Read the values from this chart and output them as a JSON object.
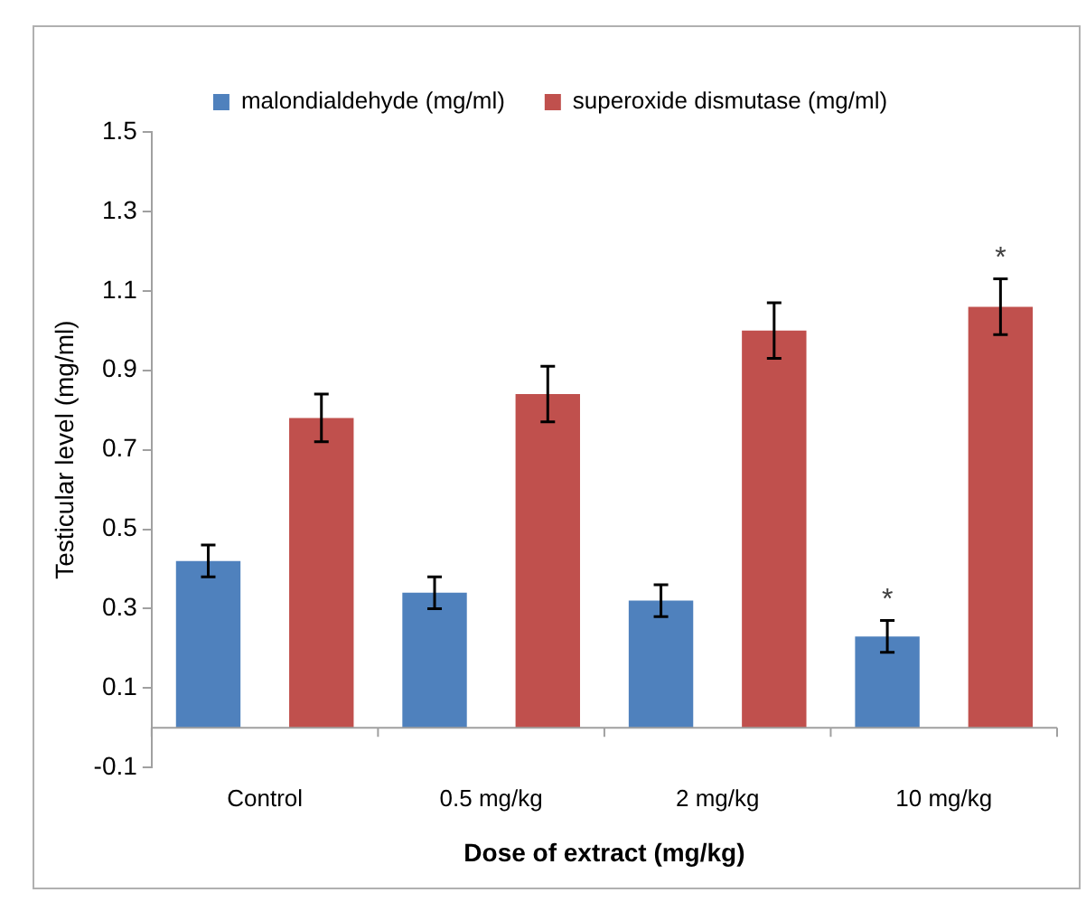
{
  "chart_data": {
    "type": "bar",
    "xlabel": "Dose of extract (mg/kg)",
    "ylabel": "Testicular level (mg/ml)",
    "categories": [
      "Control",
      "0.5 mg/kg",
      "2 mg/kg",
      "10 mg/kg"
    ],
    "series": [
      {
        "name": "malondialdehyde (mg/ml)",
        "color": "#4f81bd",
        "values": [
          0.42,
          0.34,
          0.32,
          0.23
        ],
        "errors": [
          0.04,
          0.04,
          0.04,
          0.04
        ]
      },
      {
        "name": "superoxide dismutase (mg/ml)",
        "color": "#c0504d",
        "values": [
          0.78,
          0.84,
          1.0,
          1.06
        ],
        "errors": [
          0.06,
          0.07,
          0.07,
          0.07
        ]
      }
    ],
    "ylim": [
      -0.1,
      1.5
    ],
    "yticks": [
      -0.1,
      0.1,
      0.3,
      0.5,
      0.7,
      0.9,
      1.1,
      1.3,
      1.5
    ],
    "annotations": [
      "*",
      "*"
    ],
    "legend": "top",
    "grid": false
  }
}
